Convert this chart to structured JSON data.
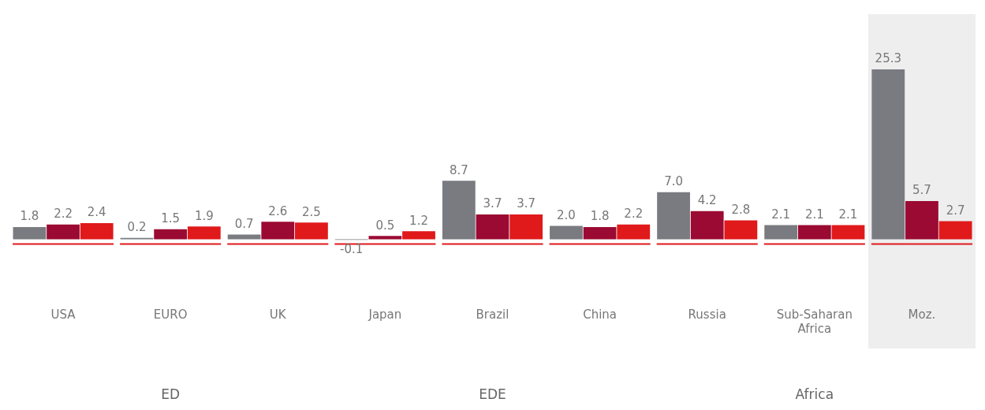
{
  "chart_data": {
    "type": "bar",
    "categories": [
      "USA",
      "EURO",
      "UK",
      "Japan",
      "Brazil",
      "China",
      "Russia",
      "Sub-Saharan Africa",
      "Moz."
    ],
    "series": [
      {
        "color": "#797b80",
        "values": [
          1.8,
          0.2,
          0.7,
          -0.1,
          8.7,
          2.0,
          7.0,
          2.1,
          25.3
        ],
        "value_labels": [
          "1.8",
          "0.2",
          "0.7",
          "-0.1",
          "8.7",
          "2.0",
          "7.0",
          "2.1",
          "25.3"
        ]
      },
      {
        "color": "#9b0a32",
        "values": [
          2.2,
          1.5,
          2.6,
          0.5,
          3.7,
          1.8,
          4.2,
          2.1,
          5.7
        ],
        "value_labels": [
          "2.2",
          "1.5",
          "2.6",
          "0.5",
          "3.7",
          "1.8",
          "4.2",
          "2.1",
          "5.7"
        ]
      },
      {
        "color": "#e0191b",
        "values": [
          2.4,
          1.9,
          2.5,
          1.2,
          3.7,
          2.2,
          2.8,
          2.1,
          2.7
        ],
        "value_labels": [
          "2.4",
          "1.9",
          "2.5",
          "1.2",
          "3.7",
          "2.2",
          "2.8",
          "2.1",
          "2.7"
        ]
      }
    ],
    "bands": [
      {
        "axis": "x",
        "from": "Moz.",
        "to": "Moz.",
        "color": "#eeeeee"
      }
    ],
    "annotations": [
      "ED",
      "EDE",
      "Africa"
    ],
    "grid": false,
    "legend": false
  }
}
